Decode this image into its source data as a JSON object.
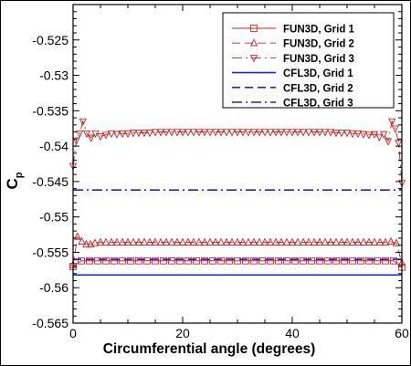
{
  "chart_data": {
    "type": "line",
    "title": "",
    "xlabel": "Circumferential angle (degrees)",
    "ylabel": "C",
    "ylabel_subscript": "p",
    "xlim": [
      0,
      60
    ],
    "ylim": [
      -0.565,
      -0.52
    ],
    "xticks": [
      0,
      20,
      40,
      60
    ],
    "xtick_labels": [
      "0",
      "20",
      "40",
      "60"
    ],
    "yticks": [
      -0.525,
      -0.53,
      -0.535,
      -0.54,
      -0.545,
      -0.55,
      -0.555,
      -0.56,
      -0.565
    ],
    "ytick_labels": [
      "-0.525",
      "-0.53",
      "-0.535",
      "-0.54",
      "-0.545",
      "-0.55",
      "-0.555",
      "-0.56",
      "-0.565"
    ],
    "grid": false,
    "legend_position": "top-right",
    "series": [
      {
        "name": "FUN3D, Grid 1",
        "color": "#d02020",
        "line_style": "solid",
        "marker": "square",
        "x": [
          0,
          1.5,
          3,
          4.5,
          6,
          7.5,
          9,
          10.5,
          12,
          13.5,
          15,
          16.5,
          18,
          19.5,
          21,
          22.5,
          24,
          25.5,
          27,
          28.5,
          30,
          31.5,
          33,
          34.5,
          36,
          37.5,
          39,
          40.5,
          42,
          43.5,
          45,
          46.5,
          48,
          49.5,
          51,
          52.5,
          54,
          55.5,
          57,
          58.5,
          60
        ],
        "values": [
          -0.557,
          -0.5562,
          -0.5562,
          -0.5562,
          -0.5562,
          -0.5562,
          -0.5562,
          -0.5562,
          -0.5562,
          -0.5562,
          -0.5562,
          -0.5562,
          -0.5562,
          -0.5562,
          -0.5562,
          -0.5562,
          -0.5562,
          -0.5562,
          -0.5562,
          -0.5562,
          -0.5562,
          -0.5562,
          -0.5562,
          -0.5562,
          -0.5562,
          -0.5562,
          -0.5562,
          -0.5562,
          -0.5562,
          -0.5562,
          -0.5562,
          -0.5562,
          -0.5562,
          -0.5562,
          -0.5562,
          -0.5562,
          -0.5562,
          -0.5562,
          -0.5562,
          -0.5562,
          -0.5571
        ]
      },
      {
        "name": "FUN3D, Grid 2",
        "color": "#d02020",
        "line_style": "dashed",
        "marker": "triangle-up",
        "x": [
          0,
          0.8,
          1.6,
          2.4,
          3.2,
          4,
          5,
          6,
          7,
          8,
          9,
          10,
          11,
          12,
          13,
          14,
          15,
          16,
          17,
          18,
          19,
          20,
          21,
          22,
          23,
          24,
          25,
          26,
          27,
          28,
          29,
          30,
          31,
          32,
          33,
          34,
          35,
          36,
          37,
          38,
          39,
          40,
          41,
          42,
          43,
          44,
          45,
          46,
          47,
          48,
          49,
          50,
          51,
          52,
          53,
          54,
          55,
          56,
          57,
          58,
          59,
          60
        ],
        "values": [
          -0.5568,
          -0.5528,
          -0.5535,
          -0.5539,
          -0.5539,
          -0.5537,
          -0.5536,
          -0.5536,
          -0.5536,
          -0.5536,
          -0.5536,
          -0.5536,
          -0.5536,
          -0.5536,
          -0.5536,
          -0.5536,
          -0.5536,
          -0.5536,
          -0.5536,
          -0.5536,
          -0.5536,
          -0.5536,
          -0.5536,
          -0.5536,
          -0.5536,
          -0.5536,
          -0.5536,
          -0.5536,
          -0.5536,
          -0.5536,
          -0.5536,
          -0.5536,
          -0.5536,
          -0.5536,
          -0.5536,
          -0.5536,
          -0.5536,
          -0.5536,
          -0.5536,
          -0.5536,
          -0.5536,
          -0.5536,
          -0.5536,
          -0.5536,
          -0.5536,
          -0.5536,
          -0.5536,
          -0.5536,
          -0.5536,
          -0.5536,
          -0.5536,
          -0.5536,
          -0.5536,
          -0.5536,
          -0.5536,
          -0.5536,
          -0.5536,
          -0.5536,
          -0.5536,
          -0.5535,
          -0.5537,
          -0.5565
        ]
      },
      {
        "name": "FUN3D, Grid 3",
        "color": "#d02020",
        "line_style": "dashdot",
        "marker": "triangle-down",
        "x": [
          0,
          0.6,
          1.2,
          1.8,
          2.5,
          3.3,
          4.1,
          5,
          6,
          7,
          8,
          9,
          10,
          11,
          12,
          13,
          14,
          15,
          16,
          17,
          18,
          19,
          20,
          21,
          22,
          23,
          24,
          25,
          26,
          27,
          28,
          29,
          30,
          31,
          32,
          33,
          34,
          35,
          36,
          37,
          38,
          39,
          40,
          41,
          42,
          43,
          44,
          45,
          46,
          47,
          48,
          49,
          50,
          51,
          52,
          53,
          54,
          55,
          55.9,
          56.7,
          57.5,
          58.2,
          58.8,
          59.4,
          60
        ],
        "values": [
          -0.5428,
          -0.5392,
          -0.5382,
          -0.5365,
          -0.5382,
          -0.5388,
          -0.5382,
          -0.5386,
          -0.5384,
          -0.5382,
          -0.5383,
          -0.5382,
          -0.5382,
          -0.5381,
          -0.5381,
          -0.5381,
          -0.5381,
          -0.538,
          -0.538,
          -0.538,
          -0.538,
          -0.538,
          -0.538,
          -0.538,
          -0.538,
          -0.538,
          -0.538,
          -0.538,
          -0.538,
          -0.538,
          -0.538,
          -0.538,
          -0.538,
          -0.538,
          -0.538,
          -0.538,
          -0.538,
          -0.538,
          -0.538,
          -0.538,
          -0.538,
          -0.538,
          -0.538,
          -0.538,
          -0.538,
          -0.538,
          -0.538,
          -0.538,
          -0.538,
          -0.538,
          -0.5381,
          -0.5381,
          -0.5381,
          -0.5382,
          -0.5382,
          -0.5383,
          -0.5384,
          -0.5383,
          -0.5387,
          -0.5383,
          -0.5393,
          -0.5365,
          -0.5375,
          -0.5395,
          -0.5452
        ]
      },
      {
        "name": "CFL3D, Grid 1",
        "color": "#2020e0",
        "line_style": "solid",
        "marker": "none",
        "x": [
          0,
          60
        ],
        "values": [
          -0.5582,
          -0.5582
        ]
      },
      {
        "name": "CFL3D, Grid 2",
        "color": "#2020e0",
        "line_style": "dashed",
        "marker": "none",
        "x": [
          0,
          60
        ],
        "values": [
          -0.556,
          -0.556
        ]
      },
      {
        "name": "CFL3D, Grid 3",
        "color": "#2020e0",
        "line_style": "dashdot",
        "marker": "none",
        "x": [
          0,
          60
        ],
        "values": [
          -0.5462,
          -0.5462
        ]
      }
    ]
  }
}
